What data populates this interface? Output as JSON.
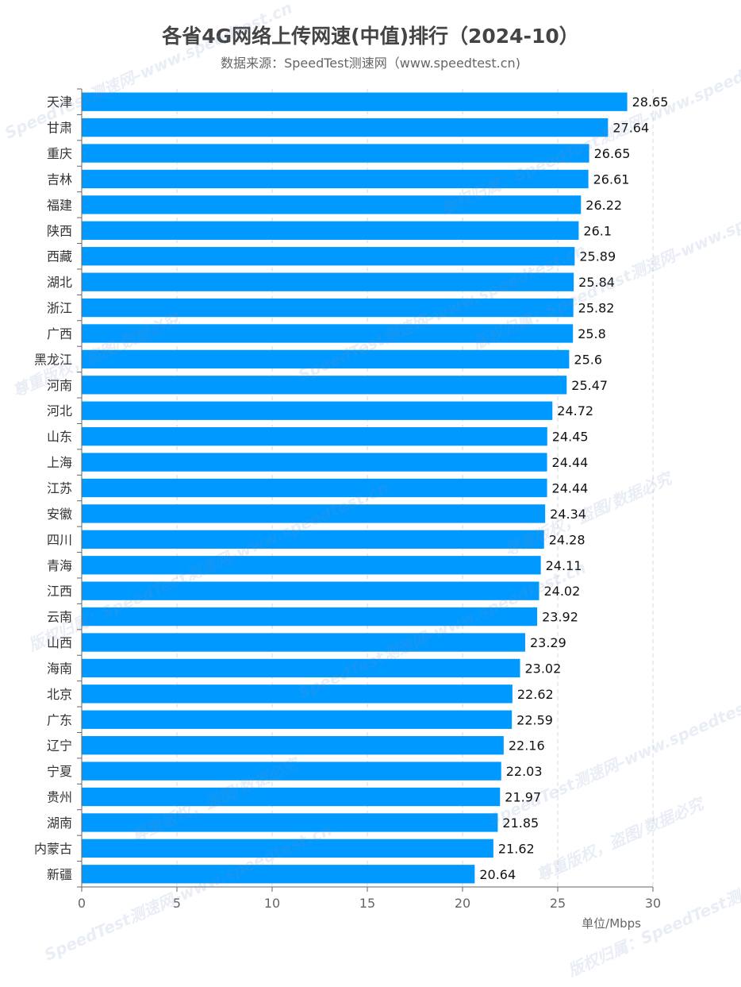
{
  "chart_data": {
    "type": "bar",
    "orientation": "horizontal",
    "title": "各省4G网络上传网速(中值)排行（2024-10）",
    "subtitle": "数据来源：SpeedTest测速网（www.speedtest.cn)",
    "unit": "单位/Mbps",
    "categories": [
      "天津",
      "甘肃",
      "重庆",
      "吉林",
      "福建",
      "陕西",
      "西藏",
      "湖北",
      "浙江",
      "广西",
      "黑龙江",
      "河南",
      "河北",
      "山东",
      "上海",
      "江苏",
      "安徽",
      "四川",
      "青海",
      "江西",
      "云南",
      "山西",
      "海南",
      "北京",
      "广东",
      "辽宁",
      "宁夏",
      "贵州",
      "湖南",
      "内蒙古",
      "新疆"
    ],
    "values": [
      28.65,
      27.64,
      26.65,
      26.61,
      26.22,
      26.1,
      25.89,
      25.84,
      25.82,
      25.8,
      25.6,
      25.47,
      24.72,
      24.45,
      24.44,
      24.44,
      24.34,
      24.28,
      24.11,
      24.02,
      23.92,
      23.29,
      23.02,
      22.62,
      22.59,
      22.16,
      22.03,
      21.97,
      21.85,
      21.62,
      20.64
    ],
    "value_labels": [
      "28.65",
      "27.64",
      "26.65",
      "26.61",
      "26.22",
      "26.1",
      "25.89",
      "25.84",
      "25.82",
      "25.8",
      "25.6",
      "25.47",
      "24.72",
      "24.45",
      "24.44",
      "24.44",
      "24.34",
      "24.28",
      "24.11",
      "24.02",
      "23.92",
      "23.29",
      "23.02",
      "22.62",
      "22.59",
      "22.16",
      "22.03",
      "21.97",
      "21.85",
      "21.62",
      "20.64"
    ],
    "xlim": [
      0,
      30
    ],
    "xticks": [
      0,
      5,
      10,
      15,
      20,
      25,
      30
    ],
    "grid": "vertical-dashed",
    "bar_color": "#0099ff"
  },
  "watermarks": [
    "SpeedTest测速网–www.speedtest.cn",
    "版权归属：SpeedTest测速网–www.speedtest.cn",
    "尊重版权，盗图/数据必究"
  ]
}
